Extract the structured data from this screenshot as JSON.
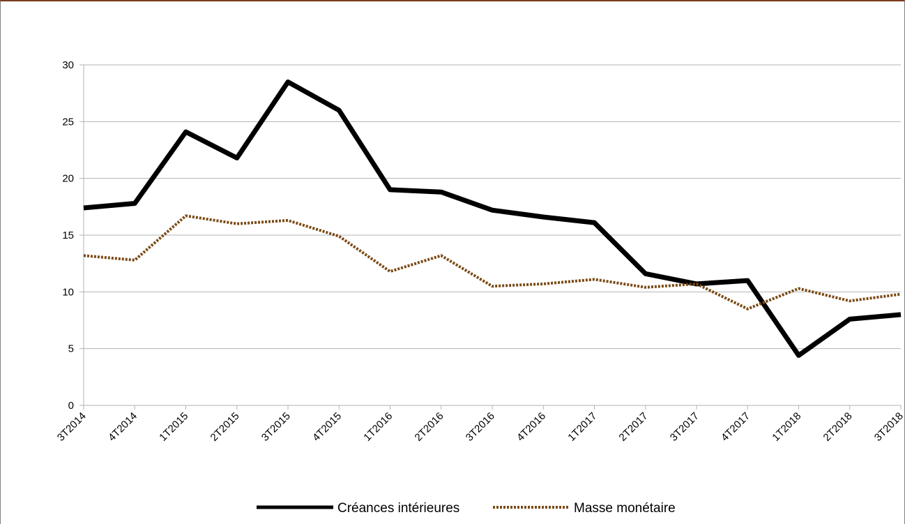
{
  "chart_data": {
    "type": "line",
    "categories": [
      "3T2014",
      "4T2014",
      "1T2015",
      "2T2015",
      "3T2015",
      "4T2015",
      "1T2016",
      "2T2016",
      "3T2016",
      "4T2016",
      "1T2017",
      "2T2017",
      "3T2017",
      "4T2017",
      "1T2018",
      "2T2018",
      "3T2018"
    ],
    "series": [
      {
        "name": "Créances intérieures",
        "values": [
          17.4,
          17.8,
          24.1,
          21.8,
          28.5,
          26.0,
          19.0,
          18.8,
          17.2,
          16.6,
          16.1,
          11.6,
          10.7,
          11.0,
          4.4,
          7.6,
          8.0
        ],
        "color": "#000000",
        "style": "solid"
      },
      {
        "name": "Masse monétaire",
        "values": [
          13.2,
          12.8,
          16.7,
          16.0,
          16.3,
          14.9,
          11.8,
          13.2,
          10.5,
          10.7,
          11.1,
          10.4,
          10.7,
          8.5,
          10.3,
          9.2,
          9.8
        ],
        "color": "#7a4a14",
        "style": "dotted"
      }
    ],
    "ylim": [
      0,
      30
    ],
    "yticks": [
      0,
      5,
      10,
      15,
      20,
      25,
      30
    ],
    "grid": true,
    "legend": "bottom"
  }
}
